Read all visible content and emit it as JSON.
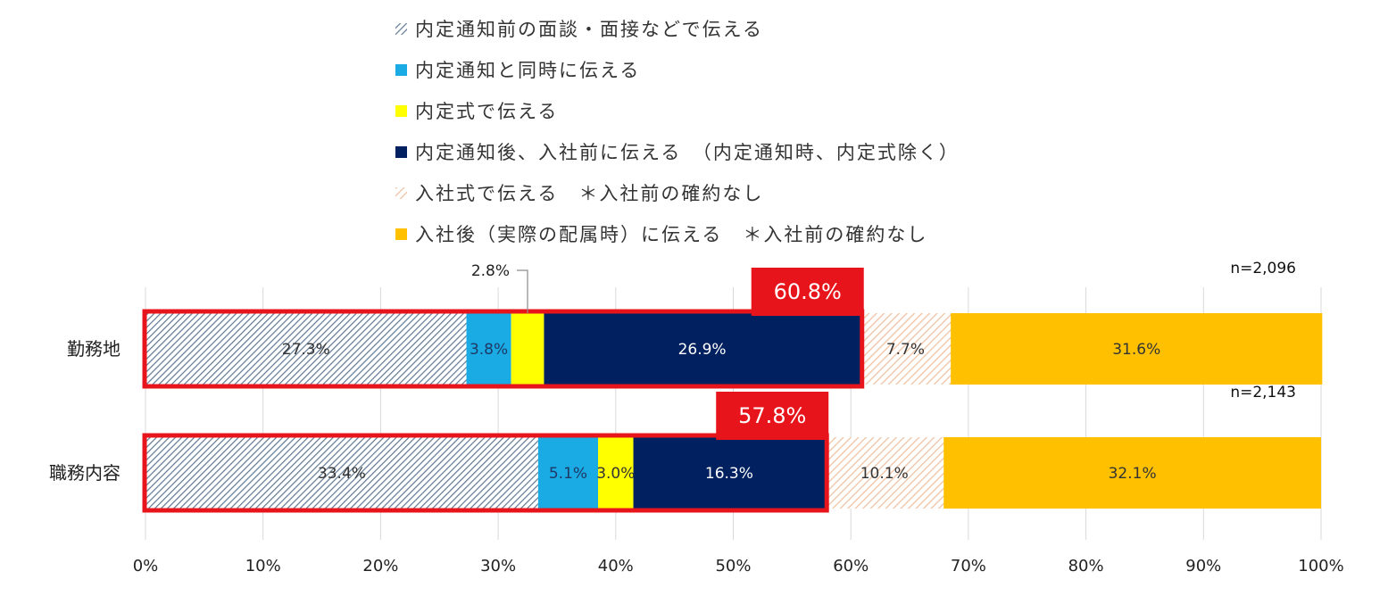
{
  "chart_data": {
    "type": "bar",
    "orientation": "horizontal",
    "stacked": true,
    "categories": [
      "勤務地",
      "職務内容"
    ],
    "series": [
      {
        "name": "内定通知前の面談・面接などで伝える",
        "values": [
          27.3,
          33.4
        ],
        "labels": [
          "27.3%",
          "33.4%"
        ],
        "color": "#A9B9CC",
        "pattern": "hatch-blue"
      },
      {
        "name": "内定通知と同時に伝える",
        "values": [
          3.8,
          5.1
        ],
        "labels": [
          "3.8%",
          "5.1%"
        ],
        "color": "#1AABE5",
        "pattern": "solid"
      },
      {
        "name": "内定式で伝える",
        "values": [
          2.8,
          3.0
        ],
        "labels": [
          "",
          "3.0%"
        ],
        "color": "#FFFF00",
        "pattern": "solid"
      },
      {
        "name": "内定通知後、入社前に伝える　（内定通知時、内定式除く）",
        "values": [
          26.9,
          16.3
        ],
        "labels": [
          "26.9%",
          "16.3%"
        ],
        "color": "#002060",
        "pattern": "solid"
      },
      {
        "name": "入社式で伝える　＊入社前の確約なし",
        "values": [
          7.7,
          10.1
        ],
        "labels": [
          "7.7%",
          "10.1%"
        ],
        "color": "#F4CFB6",
        "pattern": "hatch-peach"
      },
      {
        "name": "入社後（実際の配属時）に伝える　＊入社前の確約なし",
        "values": [
          31.6,
          32.1
        ],
        "labels": [
          "31.6%",
          "32.1%"
        ],
        "color": "#FFC000",
        "pattern": "solid"
      }
    ],
    "totals": [
      {
        "category": "勤務地",
        "value": 60.8,
        "label": "60.8%",
        "n": "n=2,096"
      },
      {
        "category": "職務内容",
        "value": 57.8,
        "label": "57.8%",
        "n": "n=2,143"
      }
    ],
    "callout": {
      "category": "勤務地",
      "series": "内定式で伝える",
      "label": "2.8%"
    },
    "x_ticks": [
      "0%",
      "10%",
      "20%",
      "30%",
      "40%",
      "50%",
      "60%",
      "70%",
      "80%",
      "90%",
      "100%"
    ],
    "xlim": [
      0,
      100
    ],
    "grid": "vertical",
    "legend_position": "top",
    "highlight_color": "#E8141B"
  }
}
